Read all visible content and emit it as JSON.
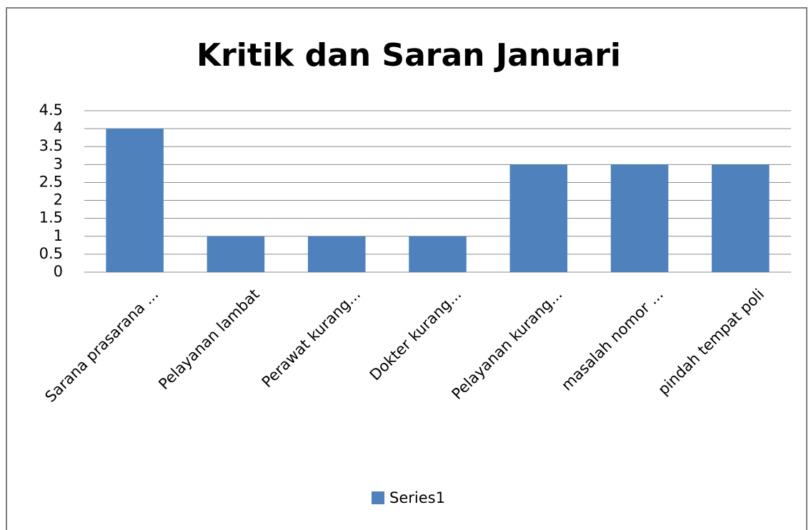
{
  "chart_data": {
    "type": "bar",
    "title": "Kritik dan Saran Januari",
    "categories": [
      "Sarana prasarana ...",
      "Pelayanan lambat",
      "Perawat kurang...",
      "Dokter kurang...",
      "Pelayanan kurang...",
      "masalah nomor ...",
      "pindah tempat poli"
    ],
    "series": [
      {
        "name": "Series1",
        "color": "#4f81bd",
        "values": [
          4,
          1,
          1,
          1,
          3,
          3,
          3
        ]
      }
    ],
    "ylim": [
      0,
      4.5
    ],
    "yticks": [
      0,
      0.5,
      1,
      1.5,
      2,
      2.5,
      3,
      3.5,
      4,
      4.5
    ],
    "grid": true,
    "legend": "bottom"
  }
}
